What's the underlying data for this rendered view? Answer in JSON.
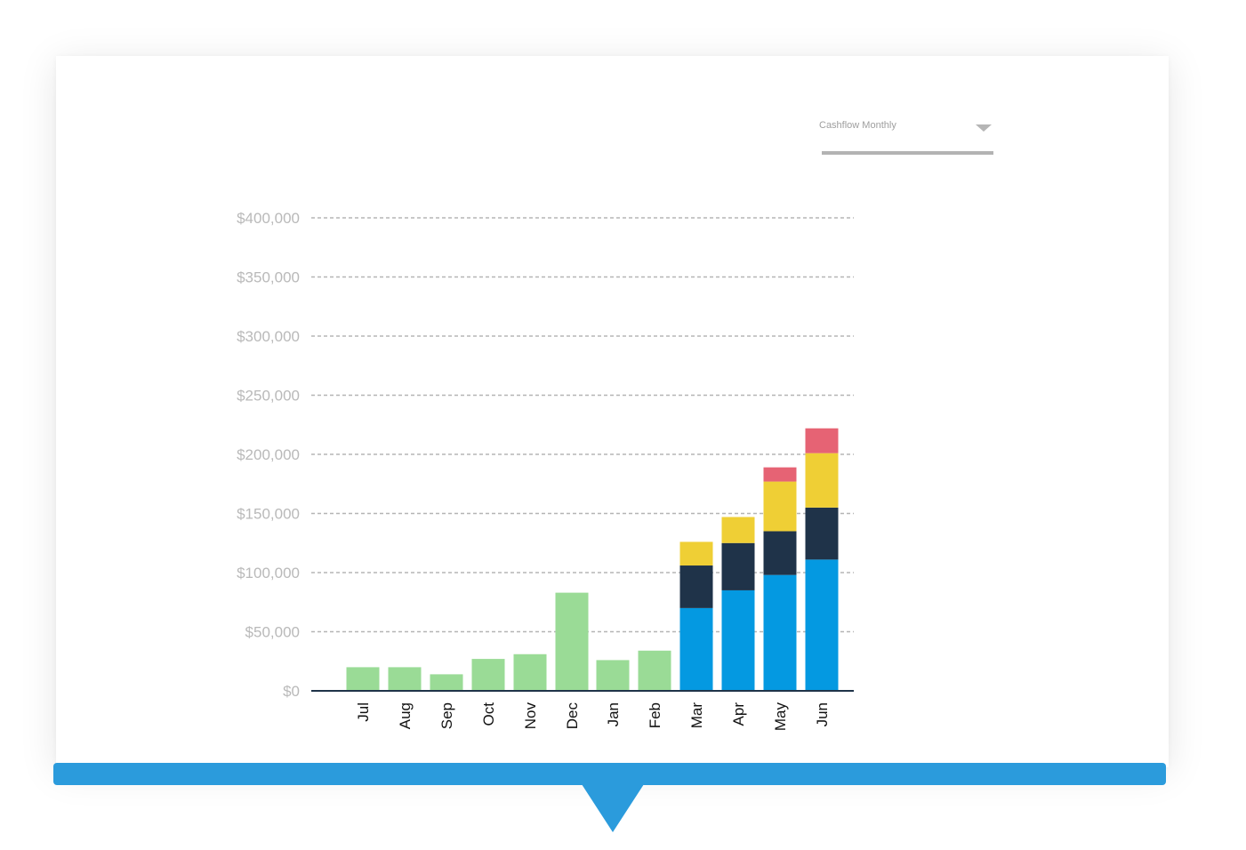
{
  "dropdown": {
    "selected": "Cashflow Monthly",
    "icon": "chevron-down-icon"
  },
  "colors": {
    "green": "#9adb96",
    "blue": "#0499e1",
    "navy": "#1f3349",
    "yellow": "#efcf35",
    "red": "#e66374",
    "accent": "#2b9bdc",
    "grid": "#b5b5b5",
    "tick_label": "#b9b9b9",
    "axis": "#1f3349"
  },
  "chart_data": {
    "type": "bar",
    "stacked": true,
    "categories": [
      "Jul",
      "Aug",
      "Sep",
      "Oct",
      "Nov",
      "Dec",
      "Jan",
      "Feb",
      "Mar",
      "Apr",
      "May",
      "Jun"
    ],
    "ylim": [
      0,
      400000
    ],
    "yticks": [
      0,
      50000,
      100000,
      150000,
      200000,
      250000,
      300000,
      350000,
      400000
    ],
    "ytick_labels": [
      "$0",
      "$50,000",
      "$100,000",
      "$150,000",
      "$200,000",
      "$250,000",
      "$300,000",
      "$350,000",
      "$400,000"
    ],
    "grid": "dashed horizontal",
    "x_label_rotation": -90,
    "series": [
      {
        "color": "#9adb96",
        "values": [
          20000,
          20000,
          14000,
          27000,
          31000,
          83000,
          26000,
          34000,
          0,
          0,
          0,
          0
        ]
      },
      {
        "color": "#0499e1",
        "values": [
          0,
          0,
          0,
          0,
          0,
          0,
          0,
          0,
          70000,
          85000,
          98000,
          111000
        ]
      },
      {
        "color": "#1f3349",
        "values": [
          0,
          0,
          0,
          0,
          0,
          0,
          0,
          0,
          36000,
          40000,
          37000,
          44000
        ]
      },
      {
        "color": "#efcf35",
        "values": [
          0,
          0,
          0,
          0,
          0,
          0,
          0,
          0,
          20000,
          22000,
          42000,
          46000
        ]
      },
      {
        "color": "#e66374",
        "values": [
          0,
          0,
          0,
          0,
          0,
          0,
          0,
          0,
          0,
          0,
          12000,
          21000
        ]
      }
    ]
  }
}
